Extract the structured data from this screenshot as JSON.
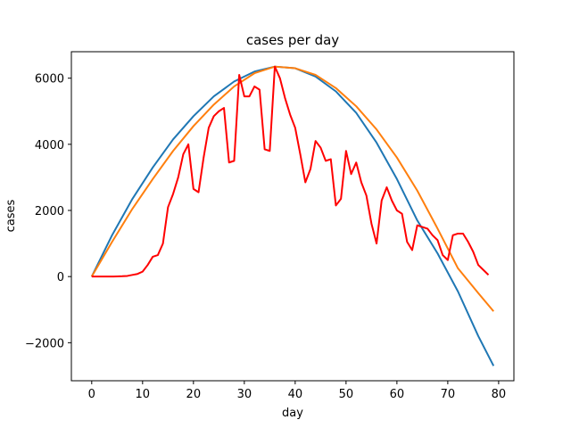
{
  "chart_data": {
    "type": "line",
    "title": "cases per day",
    "xlabel": "day",
    "ylabel": "cases",
    "xlim": [
      -4,
      83
    ],
    "ylim": [
      -3150,
      6800
    ],
    "xticks": [
      0,
      10,
      20,
      30,
      40,
      50,
      60,
      70,
      80
    ],
    "yticks": [
      -2000,
      0,
      2000,
      4000,
      6000
    ],
    "ytick_labels": [
      "−2000",
      "0",
      "2000",
      "4000",
      "6000"
    ],
    "grid": false,
    "series": [
      {
        "color": "#1f77b4",
        "x": [
          0,
          4,
          8,
          12,
          16,
          20,
          24,
          28,
          32,
          36,
          40,
          44,
          48,
          52,
          56,
          60,
          64,
          68,
          72,
          76,
          79
        ],
        "y": [
          0,
          1250,
          2350,
          3300,
          4150,
          4850,
          5450,
          5900,
          6200,
          6350,
          6300,
          6050,
          5600,
          4950,
          4050,
          2950,
          1700,
          700,
          -450,
          -1800,
          -2700
        ]
      },
      {
        "color": "#ff7f0e",
        "x": [
          0,
          4,
          8,
          12,
          16,
          20,
          24,
          28,
          32,
          36,
          40,
          44,
          48,
          52,
          56,
          60,
          64,
          68,
          72,
          76,
          79
        ],
        "y": [
          0,
          1050,
          2050,
          2950,
          3800,
          4550,
          5200,
          5750,
          6150,
          6350,
          6300,
          6100,
          5700,
          5150,
          4450,
          3600,
          2600,
          1450,
          250,
          -500,
          -1050
        ]
      },
      {
        "color": "#ff0000",
        "x": [
          0,
          1,
          2,
          3,
          4,
          5,
          6,
          7,
          8,
          9,
          10,
          11,
          12,
          13,
          14,
          15,
          16,
          17,
          18,
          19,
          20,
          21,
          22,
          23,
          24,
          25,
          26,
          27,
          28,
          29,
          30,
          31,
          32,
          33,
          34,
          35,
          36,
          37,
          38,
          39,
          40,
          41,
          42,
          43,
          44,
          45,
          46,
          47,
          48,
          49,
          50,
          51,
          52,
          53,
          54,
          55,
          56,
          57,
          58,
          59,
          60,
          61,
          62,
          63,
          64,
          65,
          66,
          67,
          68,
          69,
          70,
          71,
          72,
          73,
          74,
          75,
          76,
          77,
          78
        ],
        "y": [
          0,
          0,
          0,
          0,
          0,
          5,
          10,
          20,
          50,
          80,
          150,
          350,
          600,
          650,
          1000,
          2100,
          2500,
          3000,
          3700,
          4000,
          2650,
          2550,
          3600,
          4500,
          4850,
          5000,
          5100,
          3450,
          3500,
          6100,
          5450,
          5450,
          5750,
          5650,
          3850,
          3800,
          6350,
          6000,
          5400,
          4900,
          4500,
          3700,
          2850,
          3250,
          4100,
          3900,
          3500,
          3550,
          2150,
          2350,
          3800,
          3100,
          3450,
          2850,
          2450,
          1600,
          1000,
          2300,
          2700,
          2300,
          2000,
          1900,
          1050,
          800,
          1550,
          1500,
          1450,
          1250,
          1100,
          650,
          500,
          1250,
          1300,
          1300,
          1050,
          750,
          350,
          200,
          50
        ]
      }
    ]
  }
}
